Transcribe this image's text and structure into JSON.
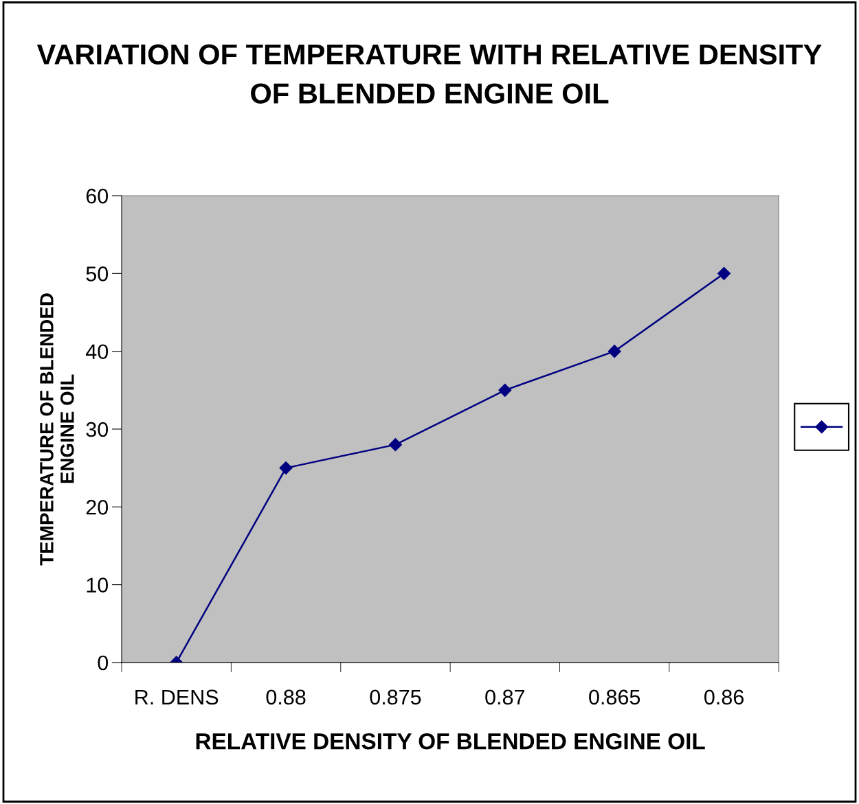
{
  "chart_data": {
    "type": "line",
    "title": "VARIATION OF TEMPERATURE WITH RELATIVE DENSITY\nOF BLENDED ENGINE OIL",
    "xlabel": "RELATIVE DENSITY OF BLENDED ENGINE OIL",
    "ylabel": "TEMPERATURE OF BLENDED\nENGINE OIL",
    "categories": [
      "R. DENS",
      "0.88",
      "0.875",
      "0.87",
      "0.865",
      "0.86"
    ],
    "series": [
      {
        "color": "#000080",
        "values": [
          0,
          25,
          28,
          35,
          40,
          50
        ]
      }
    ],
    "ylim": [
      0,
      60
    ],
    "yticks": [
      0,
      10,
      20,
      30,
      40,
      50,
      60
    ],
    "grid": false,
    "marker": "diamond",
    "line_style": "solid"
  }
}
